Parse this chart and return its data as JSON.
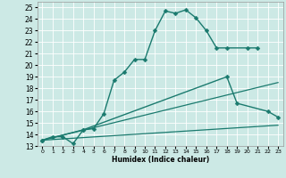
{
  "xlabel": "Humidex (Indice chaleur)",
  "bg_color": "#cce9e5",
  "grid_color": "#ffffff",
  "line_color": "#1a7a6e",
  "xlim": [
    -0.5,
    23.5
  ],
  "ylim": [
    13,
    25.5
  ],
  "xticks": [
    0,
    1,
    2,
    3,
    4,
    5,
    6,
    7,
    8,
    9,
    10,
    11,
    12,
    13,
    14,
    15,
    16,
    17,
    18,
    19,
    20,
    21,
    22,
    23
  ],
  "yticks": [
    13,
    14,
    15,
    16,
    17,
    18,
    19,
    20,
    21,
    22,
    23,
    24,
    25
  ],
  "series": [
    {
      "x": [
        0,
        1,
        2,
        3,
        4,
        5,
        6,
        7,
        8,
        9,
        10,
        11,
        12,
        13,
        14,
        15,
        16,
        17,
        18,
        20,
        21
      ],
      "y": [
        13.5,
        13.8,
        13.8,
        13.2,
        14.4,
        14.5,
        15.8,
        18.7,
        19.4,
        20.5,
        20.5,
        23.0,
        24.7,
        24.5,
        24.8,
        24.1,
        23.0,
        21.5,
        21.5,
        21.5,
        21.5
      ],
      "marker": "D",
      "markersize": 2.5,
      "linewidth": 1.0
    },
    {
      "x": [
        0,
        4,
        18,
        19,
        22,
        23
      ],
      "y": [
        13.5,
        14.4,
        19.0,
        16.7,
        16.0,
        15.5
      ],
      "marker": "D",
      "markersize": 2.5,
      "linewidth": 1.0
    },
    {
      "x": [
        0,
        23
      ],
      "y": [
        13.5,
        18.5
      ],
      "marker": null,
      "markersize": 0,
      "linewidth": 0.9
    },
    {
      "x": [
        0,
        23
      ],
      "y": [
        13.5,
        14.8
      ],
      "marker": null,
      "markersize": 0,
      "linewidth": 0.9
    }
  ]
}
